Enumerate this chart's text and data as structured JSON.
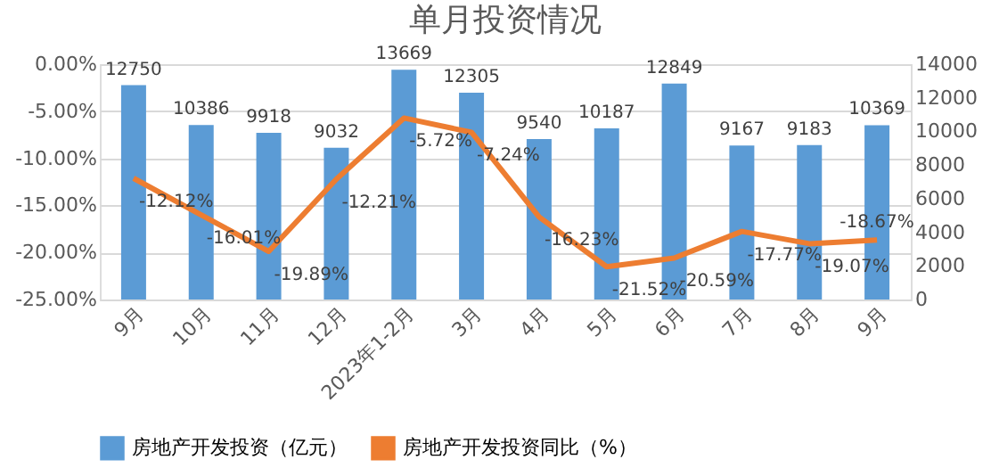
{
  "chart_data": {
    "type": "bar",
    "title": "单月投资情况",
    "categories": [
      "9月",
      "10月",
      "11月",
      "12月",
      "2023年1-2月",
      "3月",
      "4月",
      "5月",
      "6月",
      "7月",
      "8月",
      "9月"
    ],
    "series": [
      {
        "name": "房地产开发投资（亿元）",
        "axis": "y2",
        "color": "#5b9bd5",
        "values": [
          12750,
          10386,
          9918,
          9032,
          13669,
          12305,
          9540,
          10187,
          12849,
          9167,
          9183,
          10369
        ],
        "value_labels": [
          "12750",
          "10386",
          "9918",
          "9032",
          "13669",
          "12305",
          "9540",
          "10187",
          "12849",
          "9167",
          "9183",
          "10369"
        ]
      },
      {
        "name": "房地产开发投资同比（%）",
        "type": "line",
        "color": "#ed7d31",
        "values": [
          -12.12,
          -16.01,
          -19.89,
          -12.21,
          -5.72,
          -7.24,
          -16.23,
          -21.52,
          -20.59,
          -17.77,
          -19.07,
          -18.67
        ],
        "value_labels": [
          "-12.12%",
          "-16.01%",
          "-19.89%",
          "-12.21%",
          "-5.72%",
          "-7.24%",
          "-16.23%",
          "-21.52%",
          "-20.59%",
          "-17.77%",
          "-19.07%",
          "-18.67%"
        ]
      }
    ],
    "ylim": [
      -25,
      0
    ],
    "yticks": [
      {
        "value": -25,
        "label": "-25.00%"
      },
      {
        "value": -20,
        "label": "-20.00%"
      },
      {
        "value": -15,
        "label": "-15.00%"
      },
      {
        "value": -10,
        "label": "-10.00%"
      },
      {
        "value": -5,
        "label": "-5.00%"
      },
      {
        "value": 0,
        "label": "0.00%"
      }
    ],
    "y2lim": [
      0,
      14000
    ],
    "y2ticks": [
      0,
      2000,
      4000,
      6000,
      8000,
      10000,
      12000,
      14000
    ],
    "grid": "y",
    "legend": "bottom",
    "marker": "none",
    "line_style": "solid"
  }
}
